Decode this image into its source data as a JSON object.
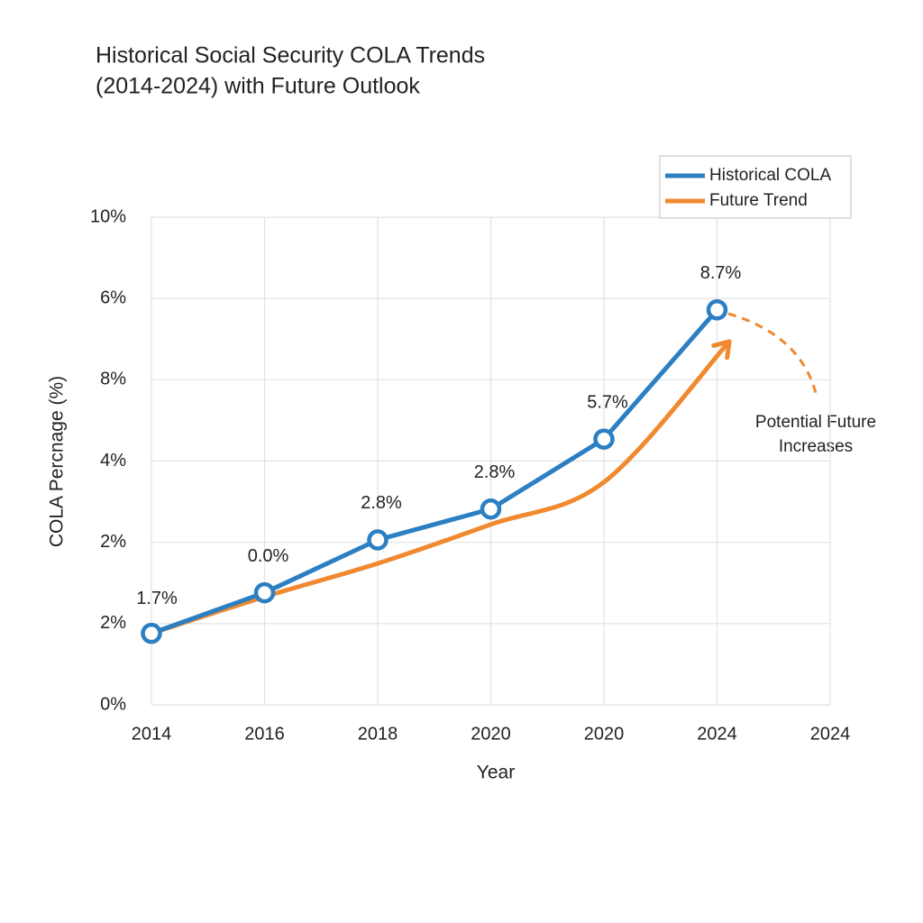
{
  "chart_data": {
    "type": "line",
    "title": [
      "Historical Social Security COLA Trends",
      "(2014-2024) with Future Outlook"
    ],
    "x_label": "Year",
    "y_label": "COLA Percnage (%)",
    "categories": [
      "2014",
      "2016",
      "2018",
      "2020",
      "2020",
      "2024",
      "2024"
    ],
    "series": [
      {
        "name": "Historical COLA",
        "color": "#2b7fc2",
        "values": [
          0.88,
          1.38,
          2.03,
          2.41,
          3.27,
          4.86,
          null
        ],
        "point_labels": [
          "1.7%",
          "0.0%",
          "2.8%",
          "2.8%",
          "5.7%",
          "8.7%",
          null
        ],
        "markers": true
      },
      {
        "name": "Future Trend",
        "color": "#f0892f",
        "values": [
          0.88,
          1.33,
          1.74,
          2.22,
          2.74,
          4.45,
          null
        ],
        "smooth": true,
        "arrow": true
      }
    ],
    "ylim": [
      0,
      6
    ],
    "yticks": [
      {
        "value": 0,
        "label": "0%"
      },
      {
        "value": 1,
        "label": "2%"
      },
      {
        "value": 2,
        "label": "2%"
      },
      {
        "value": 3,
        "label": "4%"
      },
      {
        "value": 4,
        "label": "8%"
      },
      {
        "value": 5,
        "label": "6%"
      },
      {
        "value": 6,
        "label": "10%"
      }
    ],
    "grid": true,
    "legend": "top-right",
    "annotation": [
      "Potential Future",
      "Increases"
    ]
  }
}
